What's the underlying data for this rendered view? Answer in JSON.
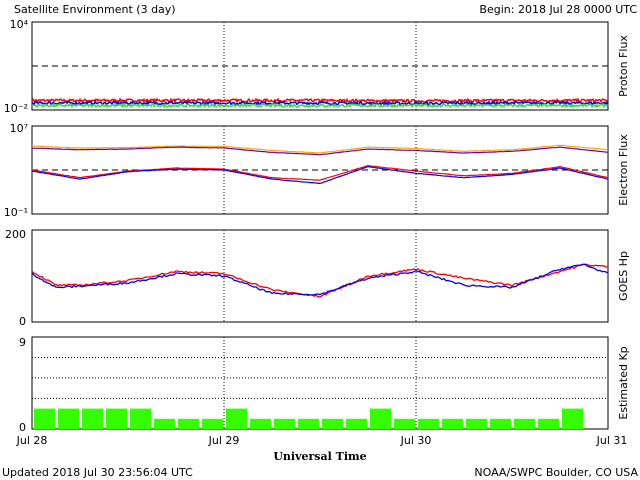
{
  "header": {
    "title": "Satellite Environment (3 day)",
    "begin": "Begin:  2018 Jul 28 0000 UTC"
  },
  "footer": {
    "updated": "Updated 2018 Jul 30 23:56:04 UTC",
    "credit": "NOAA/SWPC Boulder, CO USA"
  },
  "xaxis": {
    "label": "Universal Time",
    "ticks": [
      "Jul 28",
      "Jul 29",
      "Jul 30",
      "Jul 31"
    ]
  },
  "colors": {
    "red": "#ff0000",
    "blue": "#0000ff",
    "green": "#33dd33",
    "orange": "#ffa500",
    "purple": "#6600aa",
    "kp_bar": "#33ff00"
  },
  "chart_data": [
    {
      "type": "line",
      "ylabel": "Proton Flux",
      "yscale": "log",
      "ytick_labels": [
        "10⁴",
        "10⁻²"
      ],
      "ylim": [
        0.01,
        10000
      ],
      "threshold": 10,
      "x": [
        "Jul 28",
        "Jul 28 12",
        "Jul 29",
        "Jul 29 12",
        "Jul 30",
        "Jul 30 12",
        "Jul 31"
      ],
      "series": [
        {
          "color": "red",
          "values": [
            0.045,
            0.045,
            0.045,
            0.045,
            0.042,
            0.045,
            0.045
          ]
        },
        {
          "color": "blue",
          "values": [
            0.03,
            0.03,
            0.03,
            0.03,
            0.028,
            0.03,
            0.03
          ]
        },
        {
          "color": "green",
          "values": [
            0.02,
            0.02,
            0.02,
            0.02,
            0.02,
            0.02,
            0.02
          ]
        }
      ]
    },
    {
      "type": "line",
      "ylabel": "Electron Flux",
      "yscale": "log",
      "ytick_labels": [
        "10⁷",
        "10⁻¹"
      ],
      "ylim": [
        0.1,
        10000000
      ],
      "threshold": 1000,
      "x": [
        "Jul 28 00",
        "Jul 28 06",
        "Jul 28 12",
        "Jul 28 18",
        "Jul 29 00",
        "Jul 29 06",
        "Jul 29 12",
        "Jul 29 18",
        "Jul 30 00",
        "Jul 30 06",
        "Jul 30 12",
        "Jul 30 18",
        "Jul 31 00"
      ],
      "series": [
        {
          "color": "orange",
          "values": [
            150000,
            100000,
            110000,
            150000,
            140000,
            60000,
            35000,
            120000,
            90000,
            50000,
            70000,
            180000,
            70000
          ]
        },
        {
          "color": "purple",
          "values": [
            100000,
            70000,
            80000,
            120000,
            100000,
            40000,
            25000,
            80000,
            60000,
            35000,
            50000,
            120000,
            40000
          ]
        },
        {
          "color": "red",
          "values": [
            1000,
            200,
            800,
            1500,
            1200,
            200,
            120,
            2500,
            800,
            300,
            500,
            2000,
            200
          ]
        },
        {
          "color": "blue",
          "values": [
            800,
            150,
            700,
            1200,
            1000,
            150,
            60,
            2000,
            500,
            200,
            400,
            1500,
            150
          ]
        }
      ]
    },
    {
      "type": "line",
      "ylabel": "GOES Hp",
      "ytick_labels": [
        "200",
        "0"
      ],
      "ylim": [
        0,
        200
      ],
      "x": [
        "Jul 28 00",
        "Jul 28 03",
        "Jul 28 06",
        "Jul 28 12",
        "Jul 28 18",
        "Jul 29 00",
        "Jul 29 06",
        "Jul 29 12",
        "Jul 29 18",
        "Jul 30 00",
        "Jul 30 06",
        "Jul 30 12",
        "Jul 30 18",
        "Jul 30 21",
        "Jul 31 00"
      ],
      "series": [
        {
          "color": "red",
          "values": [
            110,
            80,
            80,
            90,
            110,
            105,
            70,
            55,
            100,
            115,
            95,
            80,
            110,
            125,
            120
          ]
        },
        {
          "color": "blue",
          "values": [
            105,
            75,
            78,
            85,
            105,
            100,
            62,
            60,
            95,
            110,
            80,
            75,
            115,
            125,
            105
          ]
        }
      ]
    },
    {
      "type": "bar",
      "ylabel": "Estimated Kp",
      "ytick_labels": [
        "9",
        "0"
      ],
      "ylim": [
        0,
        9
      ],
      "values": [
        2,
        2,
        2,
        2,
        2,
        1,
        1,
        1,
        2,
        1,
        1,
        1,
        1,
        1,
        2,
        1,
        1,
        1,
        1,
        1,
        1,
        1,
        2,
        0
      ]
    }
  ]
}
